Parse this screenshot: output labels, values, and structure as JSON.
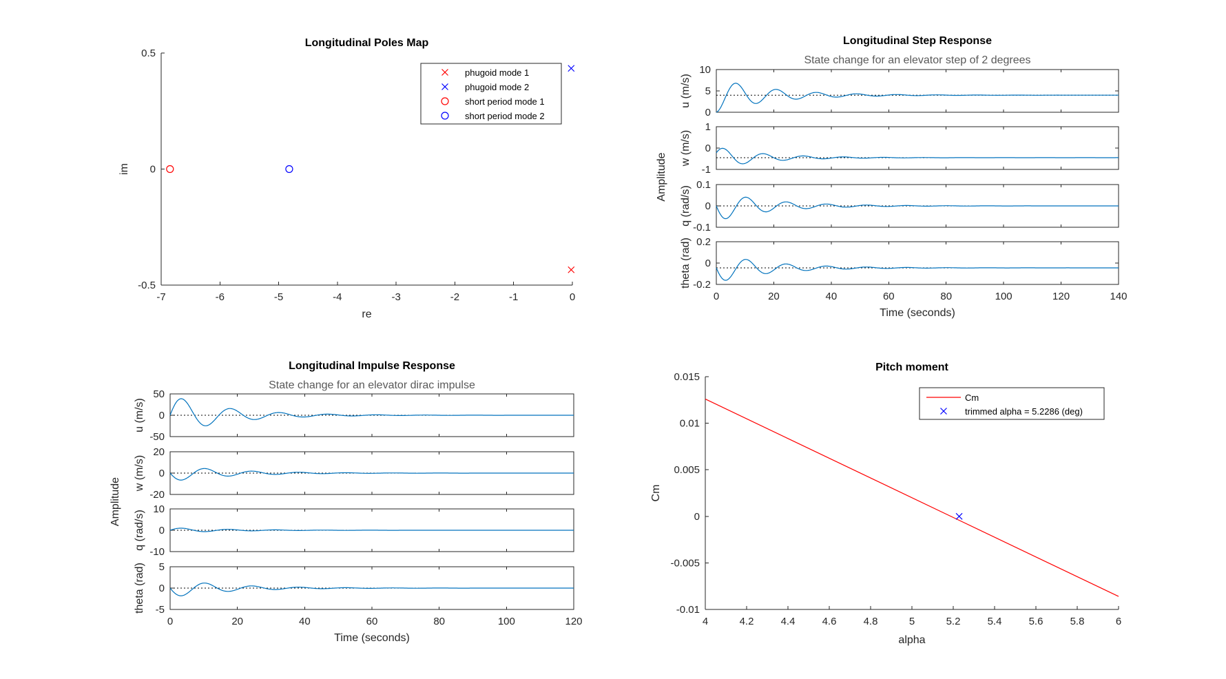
{
  "chart_data": [
    {
      "type": "scatter",
      "title": "Longitudinal Poles Map",
      "xlabel": "re",
      "ylabel": "im",
      "xlim": [
        -7,
        0
      ],
      "ylim": [
        -0.5,
        0.5
      ],
      "xticks": [
        "-7",
        "-6",
        "-5",
        "-4",
        "-3",
        "-2",
        "-1",
        "0"
      ],
      "yticks": [
        "-0.5",
        "0",
        "0.5"
      ],
      "legend_position": "top-right",
      "series": [
        {
          "name": "phugoid mode 1",
          "marker": "x",
          "color": "#ff0000",
          "points": [
            [
              -0.02,
              -0.434
            ]
          ]
        },
        {
          "name": "phugoid mode 2",
          "marker": "x",
          "color": "#0000ff",
          "points": [
            [
              -0.02,
              0.434
            ]
          ]
        },
        {
          "name": "short period mode 1",
          "marker": "o",
          "color": "#ff0000",
          "points": [
            [
              -6.85,
              0
            ]
          ]
        },
        {
          "name": "short period mode 2",
          "marker": "o",
          "color": "#0000ff",
          "points": [
            [
              -4.82,
              0
            ]
          ]
        }
      ]
    },
    {
      "type": "line",
      "title": "Longitudinal Step Response",
      "subtitle": "State change for an elevator step of 2 degrees",
      "xlabel": "Time (seconds)",
      "ylabel": "Amplitude",
      "xlim": [
        0,
        140
      ],
      "xticks": [
        "0",
        "20",
        "40",
        "60",
        "80",
        "100",
        "120",
        "140"
      ],
      "panels": [
        {
          "label": "u (m/s)",
          "ylim": [
            0,
            10
          ],
          "yticks": [
            "0",
            "5",
            "10"
          ],
          "steady": 4,
          "amp": -4,
          "period": 14,
          "decay": 0.052
        },
        {
          "label": "w (m/s)",
          "ylim": [
            -1,
            1
          ],
          "yticks": [
            "-1",
            "0",
            "1"
          ],
          "steady": -0.45,
          "amp": 0.45,
          "period": 14,
          "decay": 0.06
        },
        {
          "label": "q (rad/s)",
          "ylim": [
            -0.1,
            0.1
          ],
          "yticks": [
            "-0.1",
            "0",
            "0.1"
          ],
          "steady": 0,
          "amp": -0.072,
          "period": 14,
          "decay": 0.055
        },
        {
          "label": "theta (rad)",
          "ylim": [
            -0.2,
            0.2
          ],
          "yticks": [
            "-0.2",
            "0",
            "0.2"
          ],
          "steady": -0.045,
          "amp": -0.14,
          "period": 14,
          "decay": 0.055
        }
      ]
    },
    {
      "type": "line",
      "title": "Longitudinal Impulse Response",
      "subtitle": "State change for an elevator dirac impulse",
      "xlabel": "Time (seconds)",
      "ylabel": "Amplitude",
      "xlim": [
        0,
        120
      ],
      "xticks": [
        "0",
        "20",
        "40",
        "60",
        "80",
        "100",
        "120"
      ],
      "panels": [
        {
          "label": "u (m/s)",
          "ylim": [
            -50,
            50
          ],
          "yticks": [
            "-50",
            "0",
            "50"
          ],
          "steady": 0,
          "amp": 48,
          "period": 14.5,
          "decay": 0.062
        },
        {
          "label": "w (m/s)",
          "ylim": [
            -20,
            20
          ],
          "yticks": [
            "-20",
            "0",
            "20"
          ],
          "steady": 0,
          "amp": -8,
          "period": 14,
          "decay": 0.06
        },
        {
          "label": "q (rad/s)",
          "ylim": [
            -10,
            10
          ],
          "yticks": [
            "-10",
            "0",
            "10"
          ],
          "steady": 0,
          "amp": 1.2,
          "period": 14,
          "decay": 0.06
        },
        {
          "label": "theta (rad)",
          "ylim": [
            -5,
            5
          ],
          "yticks": [
            "-5",
            "0",
            "5"
          ],
          "steady": 0,
          "amp": -2.2,
          "period": 14,
          "decay": 0.06
        }
      ]
    },
    {
      "type": "line",
      "title": "Pitch moment",
      "xlabel": "alpha",
      "ylabel": "Cm",
      "xlim": [
        4,
        6
      ],
      "ylim": [
        -0.01,
        0.015
      ],
      "xticks": [
        "4",
        "4.2",
        "4.4",
        "4.6",
        "4.8",
        "5",
        "5.2",
        "5.4",
        "5.6",
        "5.8",
        "6"
      ],
      "yticks": [
        "-0.01",
        "-0.005",
        "0",
        "0.005",
        "0.01",
        "0.015"
      ],
      "legend_position": "top-right",
      "series": [
        {
          "name": "Cm",
          "color": "#ff0000",
          "x": [
            4,
            6
          ],
          "y": [
            0.0126,
            -0.0086
          ]
        },
        {
          "name": "trimmed alpha = 5.2286 (deg)",
          "color": "#0000ff",
          "marker": "x",
          "x": [
            5.2286
          ],
          "y": [
            0
          ]
        }
      ]
    }
  ]
}
